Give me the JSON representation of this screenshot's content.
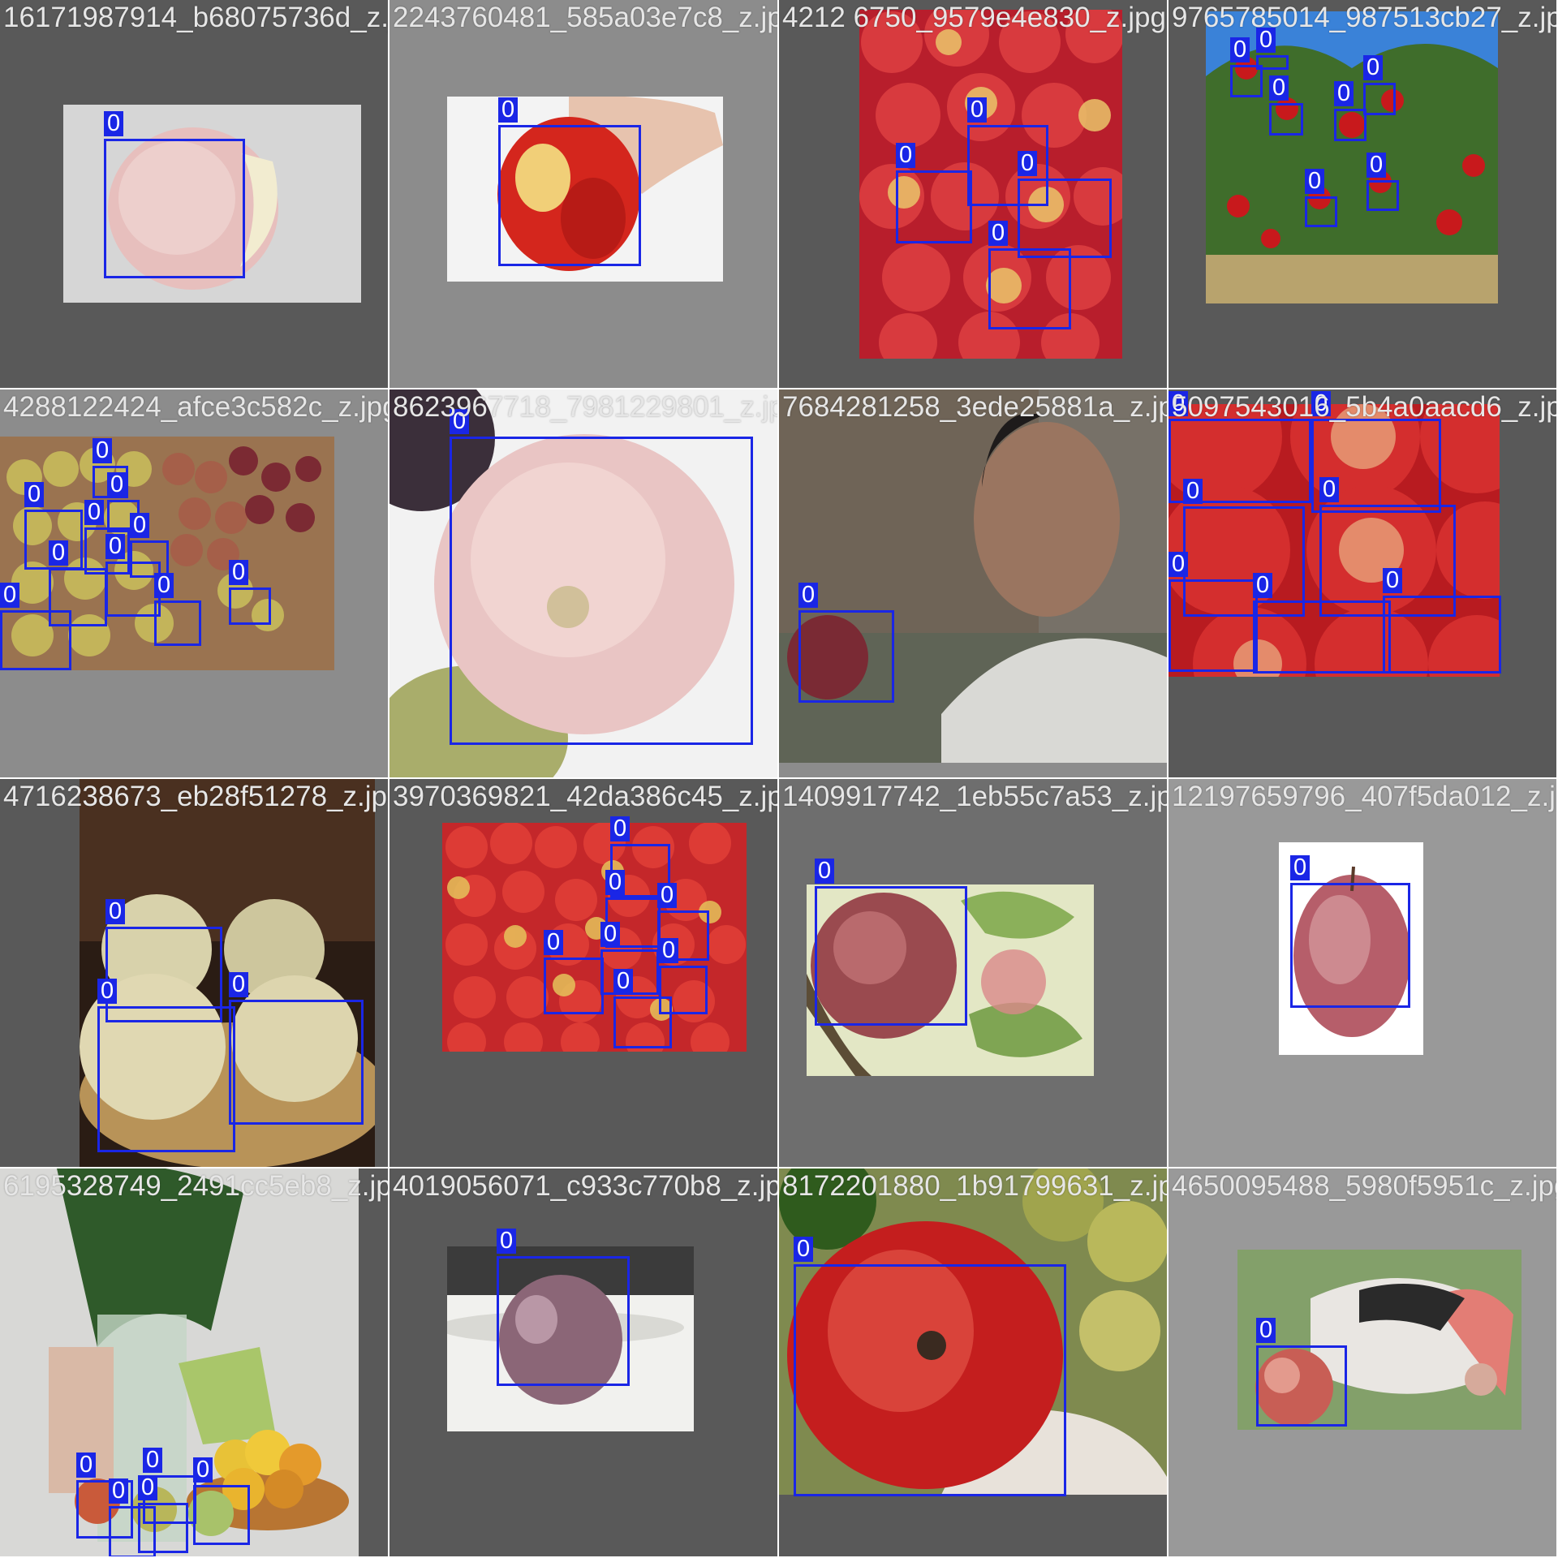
{
  "detection_class_label": "0",
  "box_color": "#1a26e6",
  "tiles": [
    {
      "filename": "16171987914_b68075736d_z.jpg",
      "content": "pink apple with a bite on grey background",
      "objects": 1
    },
    {
      "filename": "2243760481_585a03e7c8_z.jpg",
      "content": "hand holding a red bitten apple",
      "objects": 1
    },
    {
      "filename": "4212 6750_9579e4e830_z.jpg",
      "content": "pile of red and yellow apples",
      "objects": 4
    },
    {
      "filename": "9765785014_987513cb27_z.jpg",
      "content": "apple tree with red apples",
      "objects": 8
    },
    {
      "filename": "4288122424_afce3c582c_z.jpg",
      "content": "rows of green and red apples on table",
      "objects": 12
    },
    {
      "filename": "8623967718_7981229801_z.jpg",
      "content": "close-up of pink apple",
      "objects": 1
    },
    {
      "filename": "7684281258_3ede25881a_z.jpg",
      "content": "woman holding a dark red apple",
      "objects": 1
    },
    {
      "filename": "5097543016_5b4a0aacd6_z.jpg",
      "content": "crate of red apples",
      "objects": 8
    },
    {
      "filename": "4716238673_eb28f51278_z.jpg",
      "content": "three pale green apples",
      "objects": 3
    },
    {
      "filename": "3970369821_42da386c45_z.jpg",
      "content": "many red-yellow apples",
      "objects": 7
    },
    {
      "filename": "1409917742_1eb55c7a53_z.jpg",
      "content": "apple on branch with leaves",
      "objects": 1
    },
    {
      "filename": "12197659796_407f5da012_z.jpg",
      "content": "single red apple on white",
      "objects": 1
    },
    {
      "filename": "6195328749_2491cc5eb8_z.jpg",
      "content": "vase with flowers and fruit bowl",
      "objects": 5
    },
    {
      "filename": "4019056071_c933c770b8_z.jpg",
      "content": "purple apple on white table",
      "objects": 1
    },
    {
      "filename": "8172201880_1b91799631_z.jpg",
      "content": "red apple with green grapes",
      "objects": 1
    },
    {
      "filename": "4650095488_5980f5951c_z.jpg",
      "content": "painted face with apple",
      "objects": 1
    }
  ]
}
